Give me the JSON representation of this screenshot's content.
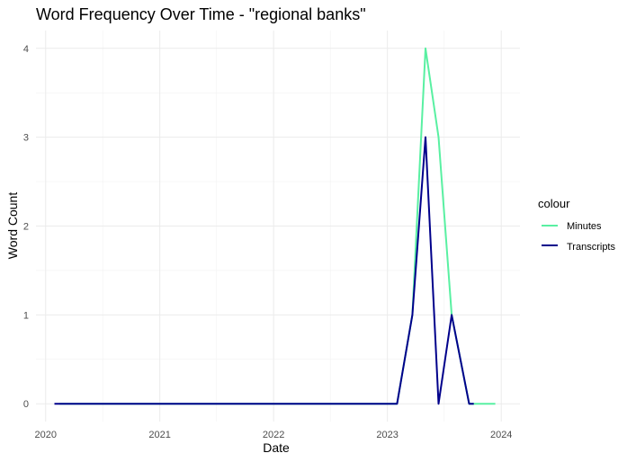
{
  "chart_data": {
    "type": "line",
    "title": "Word Frequency Over Time - \"regional banks\"",
    "xlabel": "Date",
    "ylabel": "Word Count",
    "x_ticks": [
      "2020",
      "2021",
      "2022",
      "2023",
      "2024"
    ],
    "y_ticks": [
      "0",
      "1",
      "2",
      "3",
      "4"
    ],
    "xlim": [
      "2019-12-01",
      "2024-03-01"
    ],
    "ylim": [
      -0.2,
      4.2
    ],
    "grid": true,
    "legend": {
      "title": "colour",
      "position": "right"
    },
    "series": [
      {
        "name": "Minutes",
        "color": "#59f0a2",
        "points": [
          [
            "2020-02-15",
            0
          ],
          [
            "2023-02-01",
            0
          ],
          [
            "2023-03-22",
            1
          ],
          [
            "2023-05-03",
            4
          ],
          [
            "2023-06-14",
            3
          ],
          [
            "2023-07-26",
            1
          ],
          [
            "2023-09-20",
            0
          ],
          [
            "2023-12-13",
            0
          ]
        ]
      },
      {
        "name": "Transcripts",
        "color": "#00008b",
        "points": [
          [
            "2020-01-29",
            0
          ],
          [
            "2020-03-03",
            0
          ],
          [
            "2023-01-08",
            0
          ],
          [
            "2023-02-01",
            0
          ],
          [
            "2023-03-22",
            1
          ],
          [
            "2023-05-03",
            3
          ],
          [
            "2023-06-14",
            0
          ],
          [
            "2023-07-26",
            1
          ],
          [
            "2023-09-20",
            0
          ],
          [
            "2023-10-05",
            0
          ]
        ]
      }
    ]
  }
}
